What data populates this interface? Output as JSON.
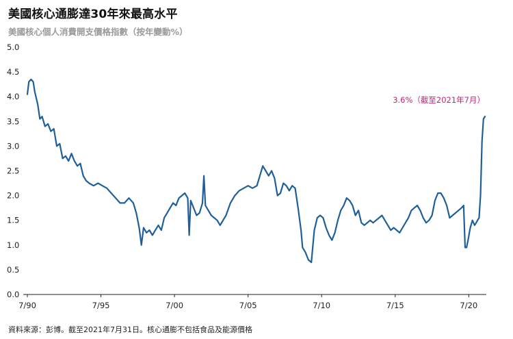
{
  "title": "美國核心通膨達30年來最高水平",
  "subtitle": "美國核心個人消費開支價格指數（按年變動%）",
  "source": "資料來源：彭博。截至2021年7月31日。核心通膨不包括食品及能源價格",
  "colors": {
    "line": "#1f5f99",
    "annotation": "#c1247a",
    "axis": "#222222",
    "grid": "#cccccc"
  },
  "chart_data": {
    "type": "line",
    "title": "美國核心通膨達30年來最高水平",
    "subtitle": "美國核心個人消費開支價格指數（按年變動%）",
    "ylim": [
      0,
      5.0
    ],
    "yticks": [
      0.0,
      0.5,
      1.0,
      1.5,
      2.0,
      2.5,
      3.0,
      3.5,
      4.0,
      4.5,
      5.0
    ],
    "ytick_labels": [
      "0.0",
      "0.5",
      "1.0",
      "1.5",
      "2.0",
      "2.5",
      "3.0",
      "3.5",
      "4.0",
      "4.5",
      "5.0"
    ],
    "xlim": [
      1990.5,
      2021.6
    ],
    "xticks": [
      1990.5,
      1995.5,
      2000.5,
      2005.5,
      2010.5,
      2015.5,
      2020.5
    ],
    "xtick_labels": [
      "7/90",
      "7/95",
      "7/00",
      "7/05",
      "7/10",
      "7/15",
      "7/20"
    ],
    "grid": false,
    "annotation": {
      "text": "3.6%（截至2021年7月）",
      "x": 2021.6,
      "y": 3.6
    },
    "series": [
      {
        "name": "",
        "points": [
          [
            1990.5,
            4.05
          ],
          [
            1990.6,
            4.3
          ],
          [
            1990.75,
            4.35
          ],
          [
            1990.9,
            4.3
          ],
          [
            1991.0,
            4.1
          ],
          [
            1991.2,
            3.85
          ],
          [
            1991.35,
            3.55
          ],
          [
            1991.5,
            3.6
          ],
          [
            1991.7,
            3.4
          ],
          [
            1991.9,
            3.45
          ],
          [
            1992.1,
            3.3
          ],
          [
            1992.3,
            3.35
          ],
          [
            1992.5,
            3.0
          ],
          [
            1992.7,
            3.05
          ],
          [
            1992.9,
            2.75
          ],
          [
            1993.1,
            2.8
          ],
          [
            1993.3,
            2.7
          ],
          [
            1993.5,
            2.85
          ],
          [
            1993.7,
            2.7
          ],
          [
            1993.9,
            2.6
          ],
          [
            1994.1,
            2.65
          ],
          [
            1994.3,
            2.4
          ],
          [
            1994.5,
            2.3
          ],
          [
            1994.7,
            2.25
          ],
          [
            1995.0,
            2.2
          ],
          [
            1995.3,
            2.25
          ],
          [
            1995.6,
            2.2
          ],
          [
            1995.9,
            2.15
          ],
          [
            1996.2,
            2.05
          ],
          [
            1996.5,
            1.95
          ],
          [
            1996.8,
            1.85
          ],
          [
            1997.1,
            1.85
          ],
          [
            1997.4,
            1.95
          ],
          [
            1997.7,
            1.85
          ],
          [
            1997.9,
            1.65
          ],
          [
            1998.1,
            1.35
          ],
          [
            1998.25,
            1.0
          ],
          [
            1998.4,
            1.35
          ],
          [
            1998.6,
            1.25
          ],
          [
            1998.8,
            1.3
          ],
          [
            1999.0,
            1.2
          ],
          [
            1999.2,
            1.3
          ],
          [
            1999.4,
            1.4
          ],
          [
            1999.6,
            1.3
          ],
          [
            1999.8,
            1.55
          ],
          [
            2000.0,
            1.65
          ],
          [
            2000.2,
            1.75
          ],
          [
            2000.4,
            1.85
          ],
          [
            2000.6,
            1.8
          ],
          [
            2000.8,
            1.95
          ],
          [
            2001.0,
            2.0
          ],
          [
            2001.2,
            2.05
          ],
          [
            2001.4,
            1.95
          ],
          [
            2001.5,
            1.2
          ],
          [
            2001.6,
            1.9
          ],
          [
            2001.8,
            1.75
          ],
          [
            2002.0,
            1.6
          ],
          [
            2002.2,
            1.65
          ],
          [
            2002.4,
            1.85
          ],
          [
            2002.5,
            2.4
          ],
          [
            2002.6,
            1.8
          ],
          [
            2002.8,
            1.7
          ],
          [
            2003.0,
            1.6
          ],
          [
            2003.2,
            1.55
          ],
          [
            2003.4,
            1.5
          ],
          [
            2003.6,
            1.4
          ],
          [
            2003.8,
            1.5
          ],
          [
            2004.0,
            1.6
          ],
          [
            2004.3,
            1.85
          ],
          [
            2004.6,
            2.0
          ],
          [
            2004.9,
            2.1
          ],
          [
            2005.2,
            2.15
          ],
          [
            2005.5,
            2.2
          ],
          [
            2005.8,
            2.15
          ],
          [
            2006.1,
            2.2
          ],
          [
            2006.3,
            2.4
          ],
          [
            2006.5,
            2.6
          ],
          [
            2006.7,
            2.5
          ],
          [
            2006.9,
            2.4
          ],
          [
            2007.1,
            2.5
          ],
          [
            2007.3,
            2.35
          ],
          [
            2007.5,
            2.0
          ],
          [
            2007.7,
            2.05
          ],
          [
            2007.9,
            2.25
          ],
          [
            2008.1,
            2.2
          ],
          [
            2008.3,
            2.1
          ],
          [
            2008.5,
            2.2
          ],
          [
            2008.7,
            2.15
          ],
          [
            2008.9,
            1.75
          ],
          [
            2009.1,
            1.3
          ],
          [
            2009.2,
            0.95
          ],
          [
            2009.4,
            0.85
          ],
          [
            2009.6,
            0.7
          ],
          [
            2009.8,
            0.65
          ],
          [
            2010.0,
            1.3
          ],
          [
            2010.2,
            1.55
          ],
          [
            2010.4,
            1.6
          ],
          [
            2010.6,
            1.55
          ],
          [
            2010.8,
            1.35
          ],
          [
            2011.0,
            1.2
          ],
          [
            2011.2,
            1.1
          ],
          [
            2011.4,
            1.25
          ],
          [
            2011.6,
            1.5
          ],
          [
            2011.8,
            1.7
          ],
          [
            2012.0,
            1.8
          ],
          [
            2012.2,
            1.95
          ],
          [
            2012.4,
            1.9
          ],
          [
            2012.6,
            1.8
          ],
          [
            2012.8,
            1.6
          ],
          [
            2013.0,
            1.7
          ],
          [
            2013.2,
            1.45
          ],
          [
            2013.4,
            1.4
          ],
          [
            2013.6,
            1.45
          ],
          [
            2013.8,
            1.5
          ],
          [
            2014.0,
            1.45
          ],
          [
            2014.2,
            1.5
          ],
          [
            2014.4,
            1.55
          ],
          [
            2014.6,
            1.6
          ],
          [
            2014.8,
            1.5
          ],
          [
            2015.0,
            1.4
          ],
          [
            2015.2,
            1.3
          ],
          [
            2015.4,
            1.35
          ],
          [
            2015.6,
            1.3
          ],
          [
            2015.8,
            1.25
          ],
          [
            2016.0,
            1.35
          ],
          [
            2016.2,
            1.45
          ],
          [
            2016.4,
            1.55
          ],
          [
            2016.6,
            1.7
          ],
          [
            2016.8,
            1.75
          ],
          [
            2017.0,
            1.8
          ],
          [
            2017.2,
            1.7
          ],
          [
            2017.4,
            1.55
          ],
          [
            2017.6,
            1.45
          ],
          [
            2017.8,
            1.5
          ],
          [
            2018.0,
            1.6
          ],
          [
            2018.2,
            1.9
          ],
          [
            2018.4,
            2.05
          ],
          [
            2018.6,
            2.05
          ],
          [
            2018.8,
            1.95
          ],
          [
            2019.0,
            1.8
          ],
          [
            2019.2,
            1.55
          ],
          [
            2019.4,
            1.6
          ],
          [
            2019.6,
            1.65
          ],
          [
            2019.8,
            1.7
          ],
          [
            2020.0,
            1.75
          ],
          [
            2020.15,
            1.8
          ],
          [
            2020.25,
            0.95
          ],
          [
            2020.35,
            0.95
          ],
          [
            2020.45,
            1.1
          ],
          [
            2020.6,
            1.35
          ],
          [
            2020.75,
            1.5
          ],
          [
            2020.9,
            1.4
          ],
          [
            2021.0,
            1.45
          ],
          [
            2021.1,
            1.5
          ],
          [
            2021.2,
            1.55
          ],
          [
            2021.3,
            2.0
          ],
          [
            2021.4,
            3.1
          ],
          [
            2021.5,
            3.55
          ],
          [
            2021.6,
            3.6
          ]
        ]
      }
    ]
  }
}
